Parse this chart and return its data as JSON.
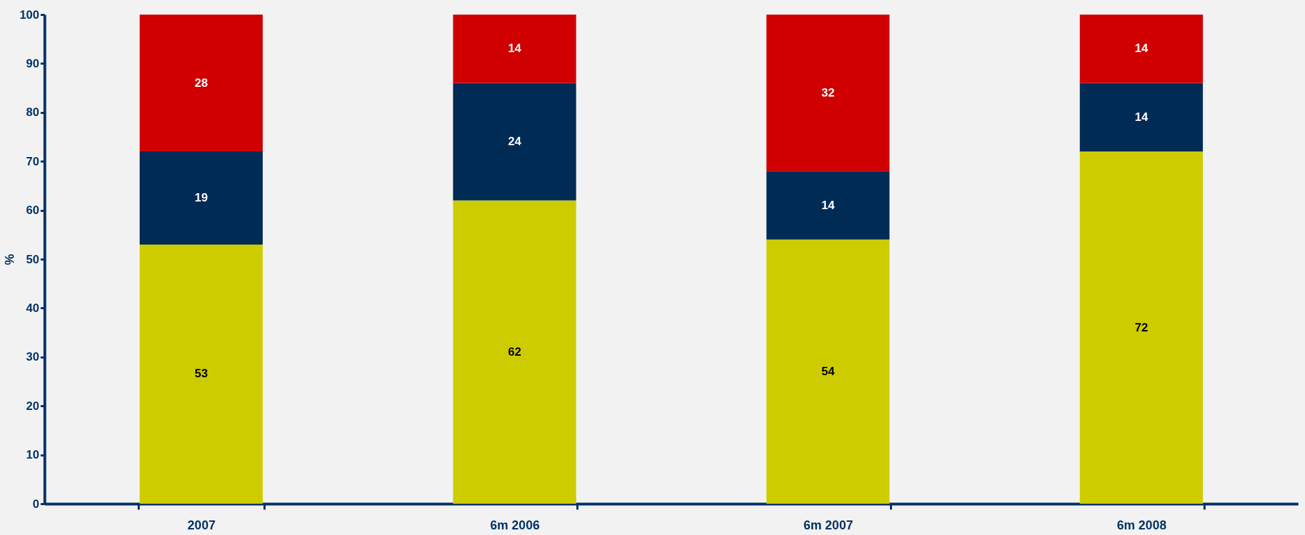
{
  "chart_data": {
    "type": "bar",
    "stacked": true,
    "data_labels": true,
    "ylabel": "%",
    "categories": [
      "2007",
      "6m 2006",
      "6m 2007",
      "6m 2008"
    ],
    "series": [
      {
        "color": "#cccc00",
        "values": [
          53,
          62,
          54,
          72
        ]
      },
      {
        "color": "#002b55",
        "values": [
          19,
          24,
          14,
          14
        ]
      },
      {
        "color": "#d00000",
        "values": [
          28,
          14,
          32,
          14
        ]
      }
    ],
    "ylim": [
      0,
      100
    ],
    "yticks": [
      0,
      10,
      20,
      30,
      40,
      50,
      60,
      70,
      80,
      90,
      100
    ],
    "grid": false
  }
}
